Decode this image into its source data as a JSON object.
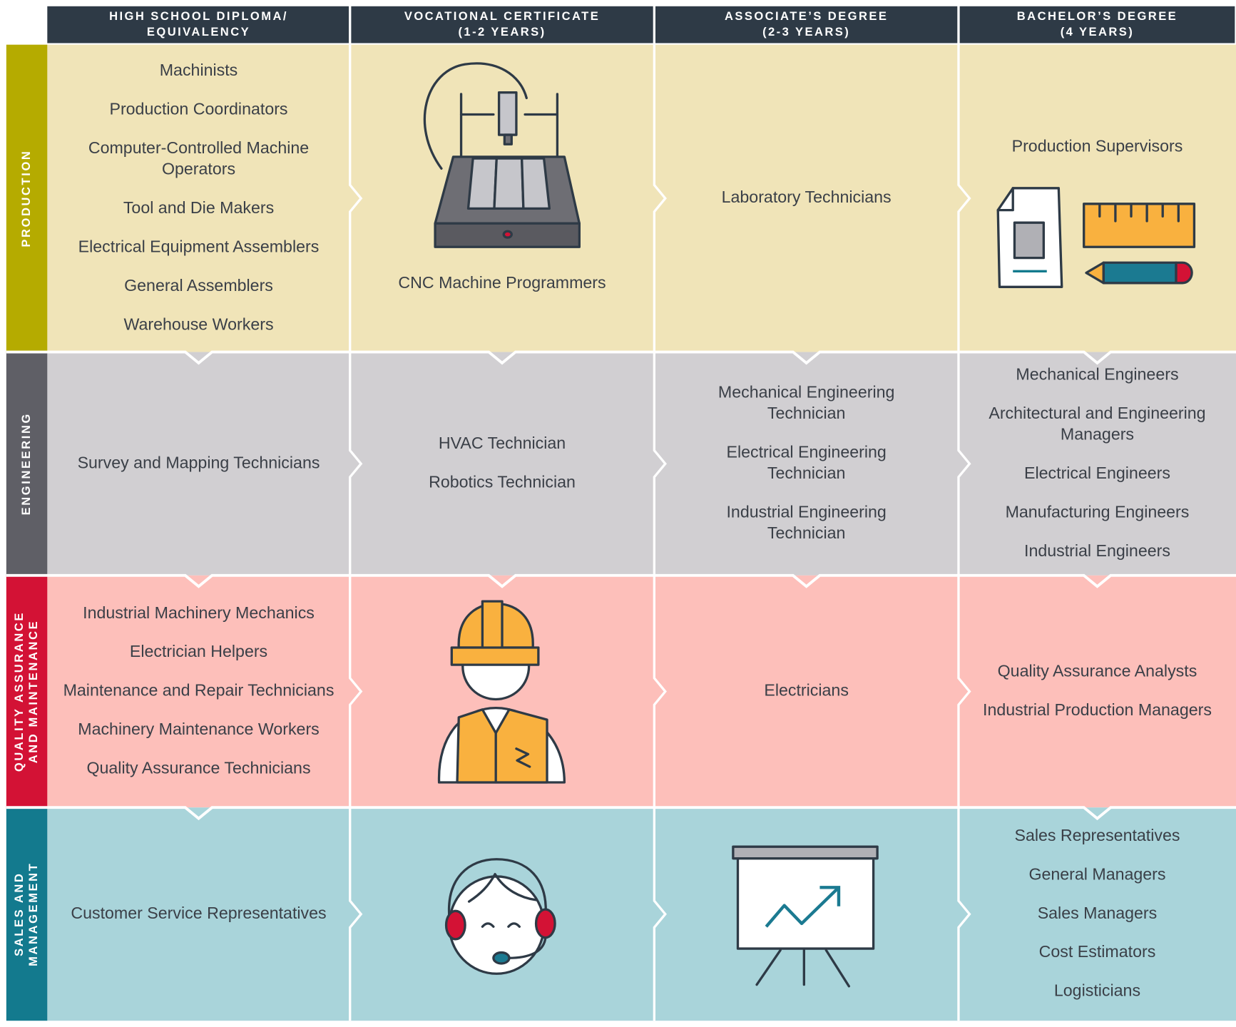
{
  "header": {
    "columns": [
      [
        "HIGH SCHOOL DIPLOMA/",
        "EQUIVALENCY"
      ],
      [
        "VOCATIONAL CERTIFICATE",
        "(1-2 YEARS)"
      ],
      [
        "ASSOCIATE’S DEGREE",
        "(2-3 YEARS)"
      ],
      [
        "BACHELOR’S DEGREE",
        "(4 YEARS)"
      ]
    ]
  },
  "rows": [
    {
      "label": [
        "PRODUCTION"
      ],
      "cells": [
        [
          [
            "Machinists"
          ],
          [
            "Production Coordinators"
          ],
          [
            "Computer-Controlled Machine",
            "Operators"
          ],
          [
            "Tool and Die Makers"
          ],
          [
            "Electrical Equipment Assemblers"
          ],
          [
            "General Assemblers"
          ],
          [
            "Warehouse Workers"
          ]
        ],
        [
          [
            "CNC Machine Programmers"
          ]
        ],
        [
          [
            "Laboratory Technicians"
          ]
        ],
        [
          [
            "Production Supervisors"
          ]
        ]
      ]
    },
    {
      "label": [
        "ENGINEERING"
      ],
      "cells": [
        [
          [
            "Survey and Mapping Technicians"
          ]
        ],
        [
          [
            "HVAC Technician"
          ],
          [
            "Robotics Technician"
          ]
        ],
        [
          [
            "Mechanical Engineering",
            "Technician"
          ],
          [
            "Electrical Engineering",
            "Technician"
          ],
          [
            "Industrial Engineering",
            "Technician"
          ]
        ],
        [
          [
            "Mechanical Engineers"
          ],
          [
            "Architectural and Engineering",
            "Managers"
          ],
          [
            "Electrical Engineers"
          ],
          [
            "Manufacturing Engineers"
          ],
          [
            "Industrial Engineers"
          ]
        ]
      ]
    },
    {
      "label": [
        "QUALITY ASSURANCE",
        "AND MAINTENANCE"
      ],
      "cells": [
        [
          [
            "Industrial Machinery Mechanics"
          ],
          [
            "Electrician Helpers"
          ],
          [
            "Maintenance and Repair Technicians"
          ],
          [
            "Machinery Maintenance Workers"
          ],
          [
            "Quality Assurance Technicians"
          ]
        ],
        [],
        [
          [
            "Electricians"
          ]
        ],
        [
          [
            "Quality Assurance Analysts"
          ],
          [
            "Industrial Production Managers"
          ]
        ]
      ]
    },
    {
      "label": [
        "SALES AND",
        "MANAGEMENT"
      ],
      "cells": [
        [
          [
            "Customer Service Representatives"
          ]
        ],
        [],
        [],
        [
          [
            "Sales Representatives"
          ],
          [
            "General Managers"
          ],
          [
            "Sales Managers"
          ],
          [
            "Cost Estimators"
          ],
          [
            "Logisticians"
          ]
        ]
      ]
    }
  ]
}
